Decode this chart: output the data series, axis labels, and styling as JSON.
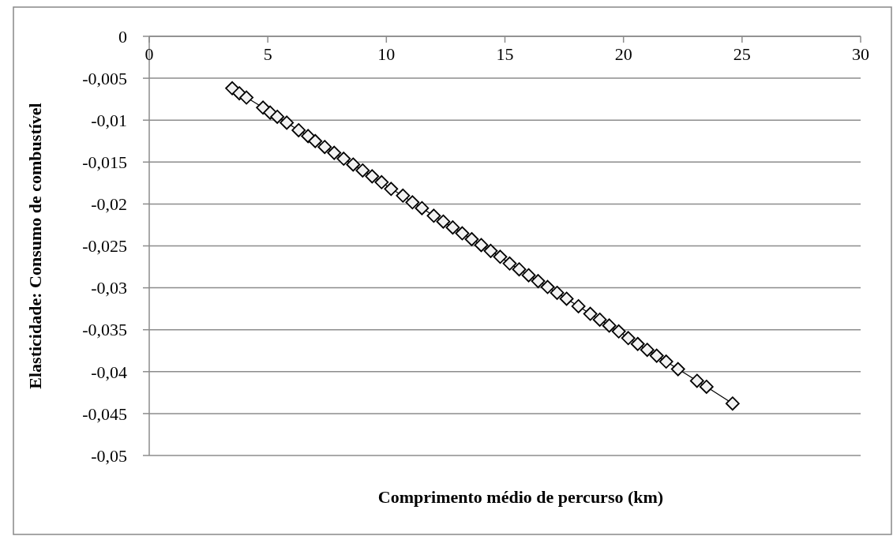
{
  "chart_data": {
    "type": "line",
    "xlabel": "Comprimento médio de percurso (km)",
    "ylabel": "Elasticidade: Consumo de combustível",
    "xlim": [
      0,
      30
    ],
    "xticks": [
      0,
      5,
      10,
      15,
      20,
      25,
      30
    ],
    "ylim": [
      -0.05,
      0
    ],
    "yticks": [
      0,
      {
        "value": -0.005,
        "label": "-0,005"
      },
      {
        "value": -0.01,
        "label": "-0,01"
      },
      {
        "value": -0.015,
        "label": "-0,015"
      },
      {
        "value": -0.02,
        "label": "-0,02"
      },
      {
        "value": -0.025,
        "label": "-0,025"
      },
      {
        "value": -0.03,
        "label": "-0,03"
      },
      {
        "value": -0.035,
        "label": "-0,035"
      },
      {
        "value": -0.04,
        "label": "-0,04"
      },
      {
        "value": -0.045,
        "label": "-0,045"
      },
      {
        "value": -0.05,
        "label": "-0,05"
      }
    ],
    "grid": "y",
    "marker": "diamond",
    "line_style": "solid",
    "series": [
      {
        "color": "#000000",
        "x": [
          3.5,
          3.8,
          4.1,
          4.8,
          5.1,
          5.4,
          5.8,
          6.3,
          6.7,
          7.0,
          7.4,
          7.8,
          8.2,
          8.6,
          9.0,
          9.4,
          9.8,
          10.2,
          10.7,
          11.1,
          11.5,
          12.0,
          12.4,
          12.8,
          13.2,
          13.6,
          14.0,
          14.4,
          14.8,
          15.2,
          15.6,
          16.0,
          16.4,
          16.8,
          17.2,
          17.6,
          18.1,
          18.6,
          19.0,
          19.4,
          19.8,
          20.2,
          20.6,
          21.0,
          21.4,
          21.8,
          22.3,
          23.1,
          23.5,
          24.6
        ],
        "values": [
          -0.0062,
          -0.0068,
          -0.0073,
          -0.0085,
          -0.0091,
          -0.0096,
          -0.0103,
          -0.0112,
          -0.0119,
          -0.0125,
          -0.0132,
          -0.0139,
          -0.0146,
          -0.0153,
          -0.016,
          -0.0167,
          -0.0174,
          -0.0182,
          -0.019,
          -0.0198,
          -0.0205,
          -0.0214,
          -0.0221,
          -0.0228,
          -0.0235,
          -0.0242,
          -0.0249,
          -0.0256,
          -0.0263,
          -0.0271,
          -0.0278,
          -0.0285,
          -0.0292,
          -0.0299,
          -0.0306,
          -0.0313,
          -0.0322,
          -0.0331,
          -0.0338,
          -0.0345,
          -0.0352,
          -0.036,
          -0.0367,
          -0.0374,
          -0.0381,
          -0.0388,
          -0.0397,
          -0.0411,
          -0.0418,
          -0.0438
        ]
      }
    ]
  }
}
